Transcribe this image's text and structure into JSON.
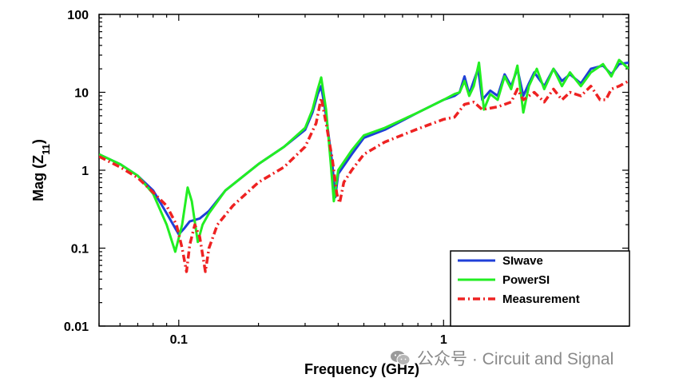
{
  "chart_data": {
    "type": "line",
    "xlabel": "Frequency (GHz)",
    "ylabel": "Mag (Z11)",
    "ylabel_main": "Mag (Z",
    "ylabel_sub": "11",
    "ylabel_close": ")",
    "x_scale": "log",
    "y_scale": "log",
    "xlim": [
      0.05,
      5.0
    ],
    "ylim": [
      0.01,
      100
    ],
    "x_ticks": [
      {
        "value": 0.1,
        "label": "0.1"
      },
      {
        "value": 1,
        "label": "1"
      }
    ],
    "y_ticks": [
      {
        "value": 100,
        "label": "100"
      },
      {
        "value": 10,
        "label": "10"
      },
      {
        "value": 1,
        "label": "1"
      },
      {
        "value": 0.1,
        "label": "0.1"
      },
      {
        "value": 0.01,
        "label": "0.01"
      }
    ],
    "grid": false,
    "legend_position": "bottom-right",
    "series": [
      {
        "name": "SIwave",
        "color": "#1f3fd8",
        "style": "solid",
        "points": [
          [
            0.05,
            1.6
          ],
          [
            0.06,
            1.2
          ],
          [
            0.07,
            0.85
          ],
          [
            0.08,
            0.55
          ],
          [
            0.09,
            0.28
          ],
          [
            0.1,
            0.15
          ],
          [
            0.105,
            0.18
          ],
          [
            0.11,
            0.22
          ],
          [
            0.12,
            0.24
          ],
          [
            0.13,
            0.3
          ],
          [
            0.15,
            0.55
          ],
          [
            0.2,
            1.2
          ],
          [
            0.25,
            2.0
          ],
          [
            0.3,
            3.3
          ],
          [
            0.32,
            5.5
          ],
          [
            0.335,
            9.5
          ],
          [
            0.345,
            12.0
          ],
          [
            0.36,
            5.0
          ],
          [
            0.38,
            1.2
          ],
          [
            0.39,
            0.45
          ],
          [
            0.4,
            0.9
          ],
          [
            0.45,
            1.6
          ],
          [
            0.5,
            2.6
          ],
          [
            0.6,
            3.3
          ],
          [
            0.8,
            5.5
          ],
          [
            1.0,
            8.0
          ],
          [
            1.1,
            9.0
          ],
          [
            1.15,
            10.0
          ],
          [
            1.2,
            16.0
          ],
          [
            1.25,
            9.5
          ],
          [
            1.3,
            14.0
          ],
          [
            1.35,
            20.0
          ],
          [
            1.4,
            8.0
          ],
          [
            1.5,
            10.5
          ],
          [
            1.6,
            9.0
          ],
          [
            1.7,
            17.0
          ],
          [
            1.8,
            12.0
          ],
          [
            1.9,
            20.0
          ],
          [
            2.0,
            9.0
          ],
          [
            2.1,
            13.0
          ],
          [
            2.2,
            18.0
          ],
          [
            2.4,
            12.0
          ],
          [
            2.6,
            20.0
          ],
          [
            2.8,
            14.0
          ],
          [
            3.0,
            17.0
          ],
          [
            3.3,
            13.0
          ],
          [
            3.6,
            20.0
          ],
          [
            4.0,
            22.0
          ],
          [
            4.3,
            17.0
          ],
          [
            4.6,
            23.0
          ],
          [
            5.0,
            24.0
          ]
        ]
      },
      {
        "name": "PowerSI",
        "color": "#22ee22",
        "style": "solid",
        "points": [
          [
            0.05,
            1.6
          ],
          [
            0.06,
            1.2
          ],
          [
            0.07,
            0.85
          ],
          [
            0.08,
            0.5
          ],
          [
            0.09,
            0.2
          ],
          [
            0.097,
            0.09
          ],
          [
            0.103,
            0.2
          ],
          [
            0.108,
            0.6
          ],
          [
            0.112,
            0.4
          ],
          [
            0.118,
            0.12
          ],
          [
            0.123,
            0.2
          ],
          [
            0.13,
            0.28
          ],
          [
            0.15,
            0.55
          ],
          [
            0.2,
            1.2
          ],
          [
            0.25,
            2.0
          ],
          [
            0.3,
            3.5
          ],
          [
            0.32,
            6.0
          ],
          [
            0.335,
            11.0
          ],
          [
            0.345,
            15.5
          ],
          [
            0.36,
            6.0
          ],
          [
            0.375,
            1.2
          ],
          [
            0.385,
            0.4
          ],
          [
            0.4,
            1.0
          ],
          [
            0.45,
            1.8
          ],
          [
            0.5,
            2.8
          ],
          [
            0.6,
            3.5
          ],
          [
            0.8,
            5.5
          ],
          [
            1.0,
            8.0
          ],
          [
            1.1,
            9.5
          ],
          [
            1.15,
            10.0
          ],
          [
            1.2,
            14.0
          ],
          [
            1.25,
            9.0
          ],
          [
            1.3,
            12.0
          ],
          [
            1.36,
            24.0
          ],
          [
            1.42,
            6.0
          ],
          [
            1.5,
            9.5
          ],
          [
            1.6,
            8.0
          ],
          [
            1.7,
            16.0
          ],
          [
            1.8,
            11.0
          ],
          [
            1.9,
            22.0
          ],
          [
            2.0,
            5.5
          ],
          [
            2.1,
            12.0
          ],
          [
            2.25,
            20.0
          ],
          [
            2.4,
            11.0
          ],
          [
            2.6,
            20.0
          ],
          [
            2.8,
            12.0
          ],
          [
            3.0,
            18.0
          ],
          [
            3.3,
            12.0
          ],
          [
            3.6,
            18.0
          ],
          [
            4.0,
            23.0
          ],
          [
            4.3,
            16.0
          ],
          [
            4.6,
            26.0
          ],
          [
            5.0,
            20.0
          ]
        ]
      },
      {
        "name": "Measurement",
        "color": "#ee2222",
        "style": "dashdot",
        "points": [
          [
            0.05,
            1.5
          ],
          [
            0.06,
            1.1
          ],
          [
            0.07,
            0.8
          ],
          [
            0.08,
            0.52
          ],
          [
            0.09,
            0.35
          ],
          [
            0.098,
            0.2
          ],
          [
            0.103,
            0.1
          ],
          [
            0.107,
            0.05
          ],
          [
            0.11,
            0.11
          ],
          [
            0.115,
            0.2
          ],
          [
            0.12,
            0.14
          ],
          [
            0.126,
            0.05
          ],
          [
            0.13,
            0.1
          ],
          [
            0.14,
            0.2
          ],
          [
            0.16,
            0.35
          ],
          [
            0.2,
            0.7
          ],
          [
            0.25,
            1.1
          ],
          [
            0.3,
            2.0
          ],
          [
            0.33,
            4.0
          ],
          [
            0.345,
            8.5
          ],
          [
            0.36,
            4.0
          ],
          [
            0.38,
            1.4
          ],
          [
            0.395,
            0.5
          ],
          [
            0.405,
            0.38
          ],
          [
            0.42,
            0.7
          ],
          [
            0.45,
            1.0
          ],
          [
            0.5,
            1.6
          ],
          [
            0.6,
            2.3
          ],
          [
            0.8,
            3.4
          ],
          [
            1.0,
            4.5
          ],
          [
            1.1,
            4.8
          ],
          [
            1.2,
            7.0
          ],
          [
            1.3,
            7.5
          ],
          [
            1.4,
            6.0
          ],
          [
            1.6,
            6.5
          ],
          [
            1.8,
            7.5
          ],
          [
            1.9,
            11.0
          ],
          [
            2.0,
            8.0
          ],
          [
            2.2,
            10.0
          ],
          [
            2.4,
            7.5
          ],
          [
            2.6,
            11.0
          ],
          [
            2.8,
            8.0
          ],
          [
            3.0,
            10.0
          ],
          [
            3.3,
            9.0
          ],
          [
            3.6,
            12.0
          ],
          [
            3.9,
            8.0
          ],
          [
            4.1,
            8.0
          ],
          [
            4.3,
            11.0
          ],
          [
            4.6,
            12.0
          ],
          [
            5.0,
            14.0
          ]
        ]
      }
    ]
  },
  "watermark": {
    "text": "公众号 · Circuit and Signal",
    "icon": "wechat-icon"
  }
}
